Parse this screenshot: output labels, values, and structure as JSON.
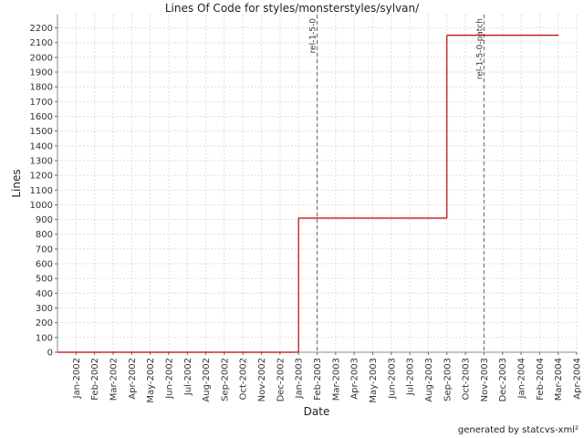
{
  "chart_data": {
    "type": "step",
    "title": "Lines Of Code for styles/monsterstyles/sylvan/",
    "x_label": "Date",
    "y_label": "Lines",
    "footer": "generated by statcvs-xml²",
    "series": [
      {
        "name": "Lines",
        "color": "#c00000",
        "x": [
          "2001-12",
          "2003-01",
          "2003-09",
          "2004-03"
        ],
        "values": [
          0,
          910,
          2150,
          2150
        ]
      }
    ],
    "annotations": [
      {
        "x": "2003-02",
        "label": "rel-1-5-0"
      },
      {
        "x": "2003-11",
        "label": "rel-1-5-0-patch"
      }
    ],
    "xlim": [
      "2001-12",
      "2004-04"
    ],
    "xticks": [
      {
        "value": "2002-01",
        "label": "Jan-2002"
      },
      {
        "value": "2002-02",
        "label": "Feb-2002"
      },
      {
        "value": "2002-03",
        "label": "Mar-2002"
      },
      {
        "value": "2002-04",
        "label": "Apr-2002"
      },
      {
        "value": "2002-05",
        "label": "May-2002"
      },
      {
        "value": "2002-06",
        "label": "Jun-2002"
      },
      {
        "value": "2002-07",
        "label": "Jul-2002"
      },
      {
        "value": "2002-08",
        "label": "Aug-2002"
      },
      {
        "value": "2002-09",
        "label": "Sep-2002"
      },
      {
        "value": "2002-10",
        "label": "Oct-2002"
      },
      {
        "value": "2002-11",
        "label": "Nov-2002"
      },
      {
        "value": "2002-12",
        "label": "Dec-2002"
      },
      {
        "value": "2003-01",
        "label": "Jan-2003"
      },
      {
        "value": "2003-02",
        "label": "Feb-2003"
      },
      {
        "value": "2003-03",
        "label": "Mar-2003"
      },
      {
        "value": "2003-04",
        "label": "Apr-2003"
      },
      {
        "value": "2003-05",
        "label": "May-2003"
      },
      {
        "value": "2003-06",
        "label": "Jun-2003"
      },
      {
        "value": "2003-07",
        "label": "Jul-2003"
      },
      {
        "value": "2003-08",
        "label": "Aug-2003"
      },
      {
        "value": "2003-09",
        "label": "Sep-2003"
      },
      {
        "value": "2003-10",
        "label": "Oct-2003"
      },
      {
        "value": "2003-11",
        "label": "Nov-2003"
      },
      {
        "value": "2003-12",
        "label": "Dec-2003"
      },
      {
        "value": "2004-01",
        "label": "Jan-2004"
      },
      {
        "value": "2004-02",
        "label": "Feb-2004"
      },
      {
        "value": "2004-03",
        "label": "Mar-2004"
      },
      {
        "value": "2004-04",
        "label": "Apr-2004"
      }
    ],
    "ylim": [
      0,
      2290
    ],
    "yticks": [
      0,
      100,
      200,
      300,
      400,
      500,
      600,
      700,
      800,
      900,
      1000,
      1100,
      1200,
      1300,
      1400,
      1500,
      1600,
      1700,
      1800,
      1900,
      2000,
      2100,
      2200
    ],
    "grid": true
  }
}
